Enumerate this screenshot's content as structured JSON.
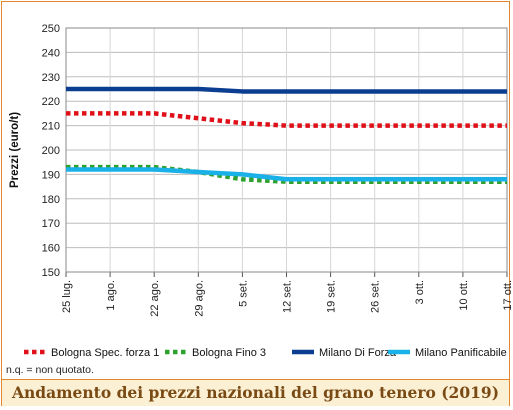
{
  "chart_data": {
    "type": "line",
    "title": "Andamento dei prezzi nazionali del grano tenero (2019)",
    "ylabel": "Prezzi (euro/t)",
    "xlabel": "",
    "ylim": [
      150,
      250
    ],
    "yticks": [
      150,
      160,
      170,
      180,
      190,
      200,
      210,
      220,
      230,
      240,
      250
    ],
    "categories": [
      "25 lug.",
      "1 ago.",
      "22 ago.",
      "29 ago.",
      "5 set.",
      "12 set.",
      "19 set.",
      "26 set.",
      "3 ott.",
      "10 ott.",
      "17 ott."
    ],
    "grid": true,
    "legend_position": "bottom",
    "series": [
      {
        "name": "Bologna Spec. forza 1",
        "color": "#e0101a",
        "style": "dotted",
        "values": [
          215,
          215,
          215,
          213,
          211,
          210,
          210,
          210,
          210,
          210,
          210
        ]
      },
      {
        "name": "Bologna Fino 3",
        "color": "#2ea12e",
        "style": "dotted",
        "values": [
          193,
          193,
          193,
          191,
          188,
          187,
          187,
          187,
          187,
          187,
          187
        ]
      },
      {
        "name": "Milano Di Forza",
        "color": "#0b3d91",
        "style": "solid",
        "values": [
          225,
          225,
          225,
          225,
          224,
          224,
          224,
          224,
          224,
          224,
          224
        ]
      },
      {
        "name": "Milano Panificabile",
        "color": "#1ab0e8",
        "style": "solid",
        "values": [
          192,
          192,
          192,
          191,
          190,
          188,
          188,
          188,
          188,
          188,
          188
        ]
      }
    ],
    "note": "n.q. = non quotato."
  }
}
